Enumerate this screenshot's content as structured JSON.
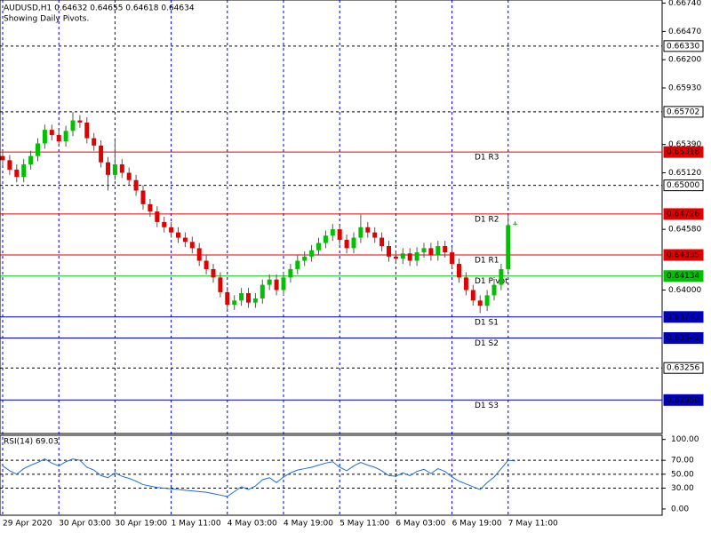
{
  "chart_data": [
    {
      "type": "candlestick",
      "title": "AUDUSD,H1  0.64632 0.64655 0.64618 0.64634",
      "subtitle": "Showing Daily Pivots.",
      "categories": [
        "29 Apr 2020",
        null,
        null,
        null,
        null,
        null,
        null,
        null,
        "30 Apr 03:00",
        null,
        null,
        null,
        null,
        null,
        null,
        null,
        "30 Apr 19:00",
        null,
        null,
        null,
        null,
        null,
        null,
        null,
        "1 May 11:00",
        null,
        null,
        null,
        null,
        null,
        null,
        null,
        "4 May 03:00",
        null,
        null,
        null,
        null,
        null,
        null,
        null,
        "4 May 19:00",
        null,
        null,
        null,
        null,
        null,
        null,
        null,
        "5 May 11:00",
        null,
        null,
        null,
        null,
        null,
        null,
        null,
        "6 May 03:00",
        null,
        null,
        null,
        null,
        null,
        null,
        null,
        "6 May 19:00",
        null,
        null,
        null,
        null,
        null,
        null,
        null,
        "7 May 11:00",
        null
      ],
      "open": [
        0.6528,
        0.6524,
        0.6515,
        0.6508,
        0.652,
        0.6528,
        0.654,
        0.6553,
        0.6548,
        0.6542,
        0.6552,
        0.6562,
        0.656,
        0.6545,
        0.6538,
        0.6522,
        0.651,
        0.652,
        0.6512,
        0.6505,
        0.6495,
        0.6482,
        0.6475,
        0.6465,
        0.646,
        0.6455,
        0.645,
        0.6446,
        0.644,
        0.6428,
        0.642,
        0.6412,
        0.6398,
        0.6386,
        0.639,
        0.6397,
        0.6388,
        0.6392,
        0.6405,
        0.641,
        0.64,
        0.6412,
        0.642,
        0.6428,
        0.6432,
        0.6438,
        0.6445,
        0.6452,
        0.6458,
        0.6448,
        0.644,
        0.645,
        0.646,
        0.6455,
        0.645,
        0.6442,
        0.6432,
        0.643,
        0.6435,
        0.6428,
        0.6436,
        0.644,
        0.6433,
        0.6442,
        0.6436,
        0.6425,
        0.6412,
        0.64,
        0.639,
        0.6385,
        0.6395,
        0.6405,
        0.642,
        0.64632
      ],
      "high": [
        0.6533,
        0.6529,
        0.652,
        0.6525,
        0.6533,
        0.6545,
        0.6558,
        0.6558,
        0.6553,
        0.6557,
        0.657,
        0.6567,
        0.6565,
        0.655,
        0.6543,
        0.6527,
        0.6545,
        0.6525,
        0.6517,
        0.651,
        0.65,
        0.6487,
        0.648,
        0.647,
        0.6465,
        0.646,
        0.6455,
        0.6451,
        0.6445,
        0.6433,
        0.6425,
        0.6417,
        0.6403,
        0.6395,
        0.6402,
        0.6402,
        0.6397,
        0.641,
        0.6415,
        0.6415,
        0.6417,
        0.6425,
        0.6433,
        0.6437,
        0.6443,
        0.645,
        0.6457,
        0.6463,
        0.6463,
        0.6453,
        0.6455,
        0.6472,
        0.6465,
        0.646,
        0.6455,
        0.6447,
        0.6437,
        0.644,
        0.644,
        0.6441,
        0.6445,
        0.6445,
        0.6447,
        0.6447,
        0.6441,
        0.643,
        0.6417,
        0.6405,
        0.6395,
        0.64,
        0.641,
        0.6425,
        0.6472,
        0.64655
      ],
      "low": [
        0.6519,
        0.651,
        0.6503,
        0.6503,
        0.6515,
        0.6523,
        0.6535,
        0.6543,
        0.6537,
        0.6537,
        0.6547,
        0.6555,
        0.654,
        0.6533,
        0.6517,
        0.6495,
        0.6505,
        0.6507,
        0.65,
        0.649,
        0.6477,
        0.647,
        0.646,
        0.6455,
        0.645,
        0.6445,
        0.6441,
        0.6435,
        0.6423,
        0.6415,
        0.6407,
        0.6393,
        0.6381,
        0.6381,
        0.6385,
        0.6383,
        0.6383,
        0.6387,
        0.64,
        0.6395,
        0.6395,
        0.6407,
        0.6415,
        0.6423,
        0.6427,
        0.6433,
        0.644,
        0.6447,
        0.6443,
        0.6435,
        0.6435,
        0.6445,
        0.645,
        0.6445,
        0.6437,
        0.6427,
        0.6425,
        0.6425,
        0.6423,
        0.6423,
        0.6431,
        0.6428,
        0.6428,
        0.6431,
        0.642,
        0.6407,
        0.6395,
        0.6385,
        0.6378,
        0.638,
        0.639,
        0.64,
        0.6415,
        0.64618
      ],
      "close": [
        0.6524,
        0.6515,
        0.6508,
        0.652,
        0.6528,
        0.654,
        0.6553,
        0.6548,
        0.6542,
        0.6552,
        0.6562,
        0.656,
        0.6545,
        0.6538,
        0.6522,
        0.651,
        0.652,
        0.6512,
        0.6505,
        0.6495,
        0.6482,
        0.6475,
        0.6465,
        0.646,
        0.6455,
        0.645,
        0.6446,
        0.644,
        0.6428,
        0.642,
        0.6412,
        0.6398,
        0.6386,
        0.639,
        0.6397,
        0.6388,
        0.6392,
        0.6405,
        0.641,
        0.64,
        0.6412,
        0.642,
        0.6428,
        0.6432,
        0.6438,
        0.6445,
        0.6452,
        0.6458,
        0.6448,
        0.644,
        0.645,
        0.646,
        0.6455,
        0.645,
        0.6442,
        0.6432,
        0.643,
        0.6435,
        0.6428,
        0.6436,
        0.644,
        0.6433,
        0.6442,
        0.6436,
        0.6425,
        0.6412,
        0.64,
        0.639,
        0.6385,
        0.6395,
        0.6405,
        0.642,
        0.6462,
        0.64634
      ],
      "up_color": "#00c000",
      "down_color": "#e00000",
      "ylim": [
        0.6263,
        0.6677
      ],
      "yticks": [
        {
          "value": 0.6674,
          "label": "0.66740"
        },
        {
          "value": 0.6647,
          "label": "0.66470"
        },
        {
          "value": 0.662,
          "label": "0.66200"
        },
        {
          "value": 0.6593,
          "label": "0.65930"
        },
        {
          "value": 0.6539,
          "label": "0.65390"
        },
        {
          "value": 0.6512,
          "label": "0.65120"
        },
        {
          "value": 0.6458,
          "label": "0.64580"
        },
        {
          "value": 0.64,
          "label": "0.64000"
        }
      ],
      "levels": [
        {
          "price": {
            "value": 0.6633,
            "label": "0.66330"
          },
          "color": "#000000",
          "dashed": true
        },
        {
          "price": 0.65702,
          "color": "#000000",
          "dashed": true
        },
        {
          "price": 0.65318,
          "color": "#e00000",
          "name": "D1 R3"
        },
        {
          "price": {
            "value": 0.65,
            "label": "0.65000"
          },
          "color": "#000000",
          "dashed": true
        },
        {
          "price": 0.64726,
          "color": "#e00000",
          "name": "D1 R2"
        },
        {
          "price": 0.64335,
          "color": "#e00000",
          "name": "D1 R1"
        },
        {
          "price": 0.64134,
          "color": "#00c000",
          "name": "D1 Pivot"
        },
        {
          "price": 0.63743,
          "color": "#0000c0",
          "name": "D1 S1"
        },
        {
          "price": 0.63542,
          "color": "#0000c0",
          "name": "D1 S2"
        },
        {
          "price": 0.63256,
          "color": "#000000",
          "dashed": true
        },
        {
          "price": {
            "value": 0.6295,
            "label": "0.62950"
          },
          "color": "#0000c0",
          "name": "D1 S3"
        }
      ]
    },
    {
      "type": "line",
      "title": "RSI(14) 69.03",
      "color": "#1e6fd0",
      "values": [
        62,
        55,
        50,
        58,
        63,
        67,
        72,
        66,
        62,
        68,
        72,
        70,
        60,
        56,
        48,
        45,
        52,
        47,
        44,
        40,
        35,
        33,
        31,
        30,
        29,
        28,
        27,
        26,
        25,
        24,
        22,
        20,
        18,
        25,
        32,
        28,
        33,
        42,
        45,
        38,
        46,
        52,
        56,
        58,
        60,
        63,
        66,
        68,
        60,
        55,
        62,
        67,
        63,
        60,
        55,
        48,
        47,
        52,
        48,
        54,
        57,
        51,
        58,
        54,
        46,
        40,
        36,
        32,
        28,
        38,
        46,
        58,
        70,
        69.03
      ],
      "ylim": [
        -9,
        106
      ],
      "yticks": [
        {
          "value": 100,
          "label": "100.00"
        },
        {
          "value": 70,
          "label": "70.00"
        },
        {
          "value": 50,
          "label": "50.00"
        },
        {
          "value": 30,
          "label": "30.00"
        },
        {
          "value": 0,
          "label": "0.00"
        }
      ],
      "grid_ticks": [
        70,
        50,
        30
      ]
    }
  ]
}
